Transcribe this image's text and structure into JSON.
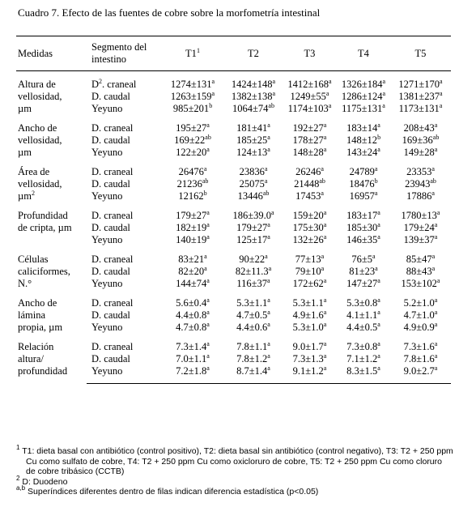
{
  "title": "Cuadro 7.  Efecto de las fuentes de cobre sobre la morfometría intestinal",
  "header": {
    "measure": "Medidas",
    "segment": [
      "Segmento del",
      "intestino"
    ],
    "treatments": [
      [
        "T1",
        "1"
      ],
      [
        "T2"
      ],
      [
        "T3"
      ],
      [
        "T4"
      ],
      [
        "T5"
      ]
    ]
  },
  "groups": [
    {
      "label": [
        [
          "Altura de"
        ],
        [
          "vellosidad,"
        ],
        [
          "µm"
        ]
      ],
      "rows": [
        {
          "segment": [
            "D",
            "2",
            ". craneal"
          ],
          "values": [
            [
              "1274±131",
              "a"
            ],
            [
              "1424±148",
              "a"
            ],
            [
              "1412±168",
              "a"
            ],
            [
              "1326±184",
              "a"
            ],
            [
              "1271±170",
              "a"
            ]
          ]
        },
        {
          "segment": [
            "D. caudal"
          ],
          "values": [
            [
              "1263±159",
              "a"
            ],
            [
              "1382±138",
              "a"
            ],
            [
              "1249±55",
              "a"
            ],
            [
              "1286±124",
              "a"
            ],
            [
              "1381±237",
              "a"
            ]
          ]
        },
        {
          "segment": [
            "Yeyuno"
          ],
          "values": [
            [
              "985±201",
              "b"
            ],
            [
              "1064±74",
              "ab"
            ],
            [
              "1174±103",
              "a"
            ],
            [
              "1175±131",
              "a"
            ],
            [
              "1173±131",
              "a"
            ]
          ]
        }
      ]
    },
    {
      "label": [
        [
          "Ancho de"
        ],
        [
          "vellosidad,"
        ],
        [
          "µm"
        ]
      ],
      "rows": [
        {
          "segment": [
            "D. craneal"
          ],
          "values": [
            [
              "195±27",
              "a"
            ],
            [
              "181±41",
              "a"
            ],
            [
              "192±27",
              "a"
            ],
            [
              "183±14",
              "a"
            ],
            [
              "208±43",
              "a"
            ]
          ]
        },
        {
          "segment": [
            "D. caudal"
          ],
          "values": [
            [
              "169±22",
              "ab"
            ],
            [
              "185±25",
              "a"
            ],
            [
              "178±27",
              "a"
            ],
            [
              "148±12",
              "b"
            ],
            [
              "169±36",
              "ab"
            ]
          ]
        },
        {
          "segment": [
            "Yeyuno"
          ],
          "values": [
            [
              "122±20",
              "a"
            ],
            [
              "124±13",
              "a"
            ],
            [
              "148±28",
              "a"
            ],
            [
              "143±24",
              "a"
            ],
            [
              "149±28",
              "a"
            ]
          ]
        }
      ]
    },
    {
      "label": [
        [
          "Área de"
        ],
        [
          "vellosidad,"
        ],
        [
          "µm",
          "2"
        ]
      ],
      "rows": [
        {
          "segment": [
            "D. craneal"
          ],
          "values": [
            [
              "26476",
              "a"
            ],
            [
              "23836",
              "a"
            ],
            [
              "26246",
              "a"
            ],
            [
              "24789",
              "a"
            ],
            [
              "23353",
              "a"
            ]
          ]
        },
        {
          "segment": [
            "D. caudal"
          ],
          "values": [
            [
              "21236",
              "ab"
            ],
            [
              "25075",
              "a"
            ],
            [
              "21448",
              "ab"
            ],
            [
              "18476",
              "b"
            ],
            [
              "23943",
              "ab"
            ]
          ]
        },
        {
          "segment": [
            "Yeyuno"
          ],
          "values": [
            [
              "12162",
              "b"
            ],
            [
              "13446",
              "ab"
            ],
            [
              "17453",
              "a"
            ],
            [
              "16957",
              "a"
            ],
            [
              "17886",
              "a"
            ]
          ]
        }
      ]
    },
    {
      "label": [
        [
          "Profundidad"
        ],
        [
          "de cripta, µm"
        ]
      ],
      "rows": [
        {
          "segment": [
            "D. craneal"
          ],
          "values": [
            [
              "179±27",
              "a"
            ],
            [
              "186±39.0",
              "a"
            ],
            [
              "159±20",
              "a"
            ],
            [
              "183±17",
              "a"
            ],
            [
              "1780±13",
              "a"
            ]
          ]
        },
        {
          "segment": [
            "D. caudal"
          ],
          "values": [
            [
              "182±19",
              "a"
            ],
            [
              "179±27",
              "a"
            ],
            [
              "175±30",
              "a"
            ],
            [
              "185±30",
              "a"
            ],
            [
              "179±24",
              "a"
            ]
          ]
        },
        {
          "segment": [
            "Yeyuno"
          ],
          "values": [
            [
              "140±19",
              "a"
            ],
            [
              "125±17",
              "a"
            ],
            [
              "132±26",
              "a"
            ],
            [
              "146±35",
              "a"
            ],
            [
              "139±37",
              "a"
            ]
          ]
        }
      ]
    },
    {
      "label": [
        [
          "Células"
        ],
        [
          "caliciformes,"
        ],
        [
          "N.°"
        ]
      ],
      "rows": [
        {
          "segment": [
            "D. craneal"
          ],
          "values": [
            [
              "83±21",
              "a"
            ],
            [
              "90±22",
              "a"
            ],
            [
              "77±13",
              "a"
            ],
            [
              "76±5",
              "a"
            ],
            [
              "85±47",
              "a"
            ]
          ]
        },
        {
          "segment": [
            "D. caudal"
          ],
          "values": [
            [
              "82±20",
              "a"
            ],
            [
              "82±11.3",
              "a"
            ],
            [
              "79±10",
              "a"
            ],
            [
              "81±23",
              "a"
            ],
            [
              "88±43",
              "a"
            ]
          ]
        },
        {
          "segment": [
            "Yeyuno"
          ],
          "values": [
            [
              "144±74",
              "a"
            ],
            [
              "116±37",
              "a"
            ],
            [
              "172±62",
              "a"
            ],
            [
              "147±27",
              "a"
            ],
            [
              "153±102",
              "a"
            ]
          ]
        }
      ]
    },
    {
      "label": [
        [
          "Ancho de"
        ],
        [
          "lámina"
        ],
        [
          "propia, µm"
        ]
      ],
      "rows": [
        {
          "segment": [
            "D. craneal"
          ],
          "values": [
            [
              "5.6±0.4",
              "a"
            ],
            [
              "5.3±1.1",
              "a"
            ],
            [
              "5.3±1.1",
              "a"
            ],
            [
              "5.3±0.8",
              "a"
            ],
            [
              "5.2±1.0",
              "a"
            ]
          ]
        },
        {
          "segment": [
            "D. caudal"
          ],
          "values": [
            [
              "4.4±0.8",
              "a"
            ],
            [
              "4.7±0.5",
              "a"
            ],
            [
              "4.9±1.6",
              "a"
            ],
            [
              "4.1±1.1",
              "a"
            ],
            [
              "4.7±1.0",
              "a"
            ]
          ]
        },
        {
          "segment": [
            "Yeyuno"
          ],
          "values": [
            [
              "4.7±0.8",
              "a"
            ],
            [
              "4.4±0.6",
              "a"
            ],
            [
              "5.3±1.0",
              "a"
            ],
            [
              "4.4±0.5",
              "a"
            ],
            [
              "4.9±0.9",
              "a"
            ]
          ]
        }
      ]
    },
    {
      "label": [
        [
          "Relación"
        ],
        [
          "altura/"
        ],
        [
          "profundidad"
        ]
      ],
      "rows": [
        {
          "segment": [
            "D. craneal"
          ],
          "values": [
            [
              "7.3±1.4",
              "a"
            ],
            [
              "7.8±1.1",
              "a"
            ],
            [
              "9.0±1.7",
              "a"
            ],
            [
              "7.3±0.8",
              "a"
            ],
            [
              "7.3±1.6",
              "a"
            ]
          ]
        },
        {
          "segment": [
            "D. caudal"
          ],
          "values": [
            [
              "7.0±1.1",
              "a"
            ],
            [
              "7.8±1.2",
              "a"
            ],
            [
              "7.3±1.3",
              "a"
            ],
            [
              "7.1±1.2",
              "a"
            ],
            [
              "7.8±1.6",
              "a"
            ]
          ]
        },
        {
          "segment": [
            "Yeyuno"
          ],
          "values": [
            [
              "7.2±1.8",
              "a"
            ],
            [
              "8.7±1.4",
              "a"
            ],
            [
              "9.1±1.2",
              "a"
            ],
            [
              "8.3±1.5",
              "a"
            ],
            [
              "9.0±2.7",
              "a"
            ]
          ]
        }
      ]
    }
  ],
  "footnotes": [
    {
      "mark": "1",
      "text": "T1: dieta basal con antibiótico (control positivo), T2: dieta basal sin antibiótico (control negativo), T3: T2 + 250 ppm Cu como sulfato de cobre, T4: T2 + 250 ppm Cu como oxicloruro de cobre, T5: T2 + 250 ppm Cu como cloruro de cobre tribásico (CCTB)"
    },
    {
      "mark": "2",
      "text": "D: Duodeno"
    },
    {
      "mark": "a,b",
      "text": "Superíndices diferentes dentro de filas indican diferencia estadística (p<0.05)"
    }
  ]
}
